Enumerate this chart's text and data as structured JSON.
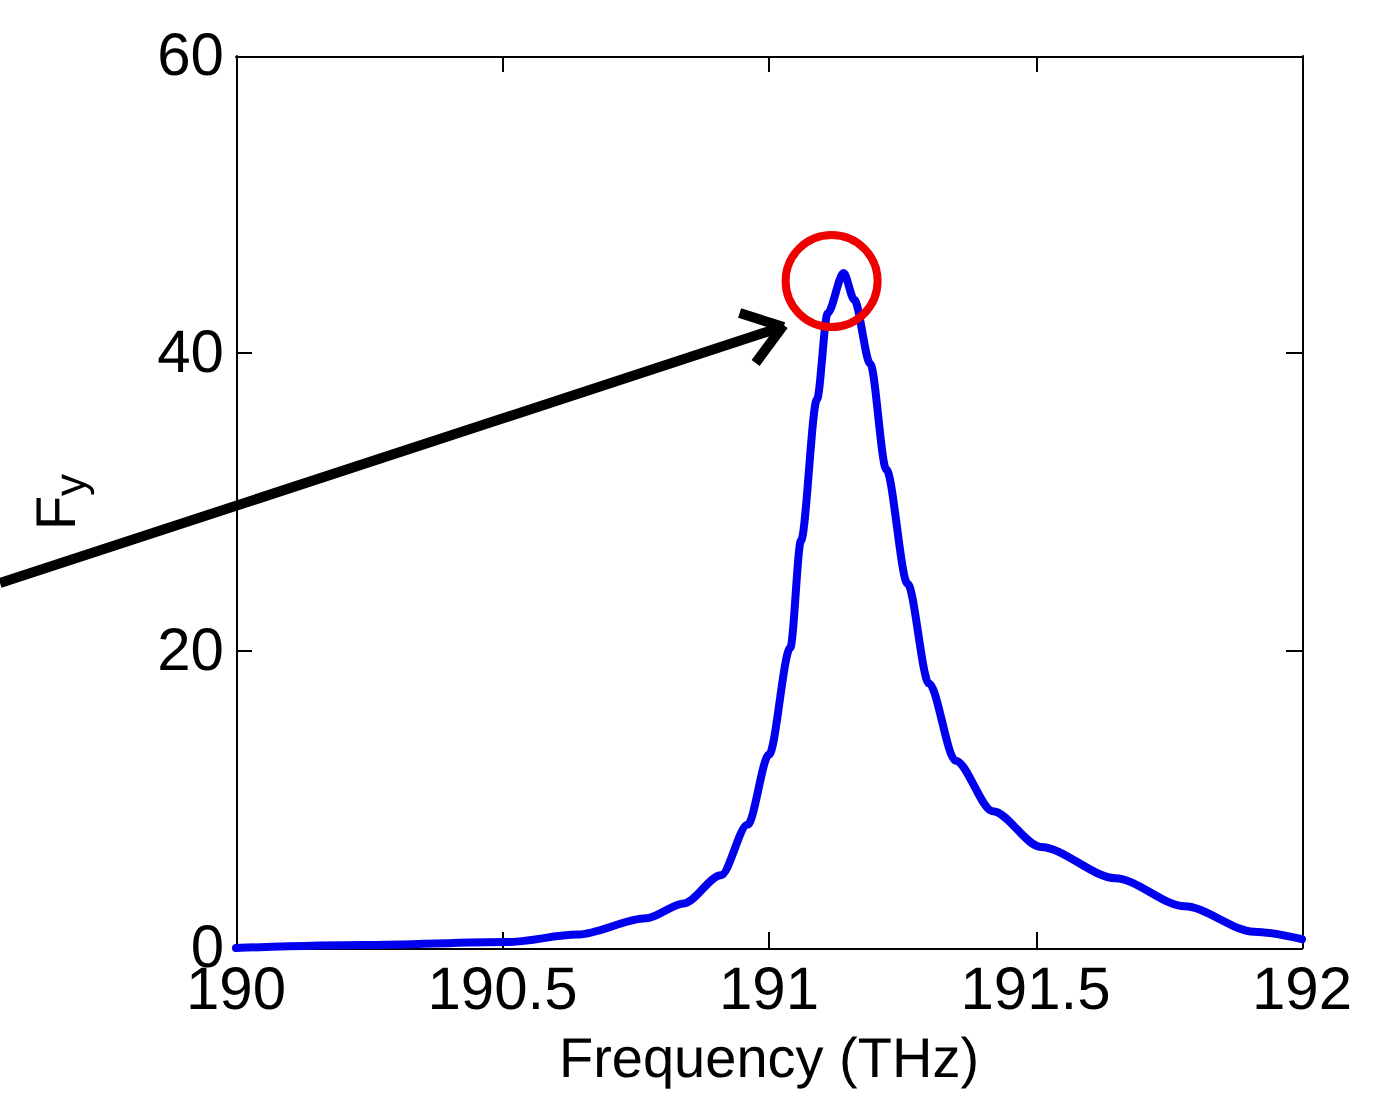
{
  "chart_data": {
    "type": "line",
    "xlabel": "Frequency (THz)",
    "ylabel": "F$_{y}$",
    "x": [
      190,
      190.24,
      190.51,
      190.64,
      190.77,
      190.84,
      190.91,
      190.96,
      191.0,
      191.04,
      191.06,
      191.09,
      191.11,
      191.14,
      191.16,
      191.19,
      191.22,
      191.26,
      191.3,
      191.35,
      191.42,
      191.51,
      191.65,
      191.78,
      191.91,
      192
    ],
    "series": [
      {
        "color": "#0000ee",
        "values": [
          0,
          0.2,
          0.4,
          0.9,
          2.0,
          3.0,
          4.9,
          8.3,
          13.0,
          20.2,
          27.4,
          36.9,
          42.7,
          45.4,
          43.6,
          39.3,
          32.2,
          24.5,
          17.8,
          12.6,
          9.2,
          6.8,
          4.7,
          2.8,
          1.1,
          0.6
        ]
      }
    ],
    "xlim": [
      190,
      192
    ],
    "xticks": [
      190,
      190.5,
      191,
      191.5,
      192
    ],
    "ylim": [
      0,
      60
    ],
    "yticks": [
      0,
      20,
      40,
      60
    ],
    "grid": false,
    "marker": "none",
    "line_style": "solid"
  }
}
